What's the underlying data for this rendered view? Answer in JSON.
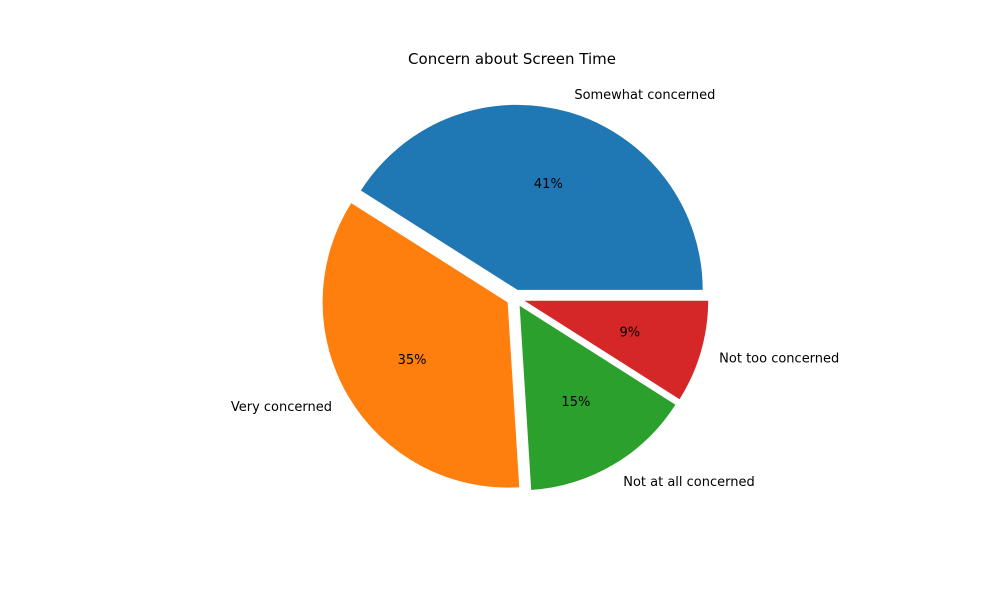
{
  "chart_data": {
    "type": "pie",
    "title": "Concern about Screen Time",
    "start_angle_deg": 0,
    "direction": "counterclockwise",
    "explode": true,
    "slices": [
      {
        "label": "Somewhat concerned",
        "value": 41,
        "pct_label": "41%",
        "color": "#1f77b4"
      },
      {
        "label": "Very concerned",
        "value": 35,
        "pct_label": "35%",
        "color": "#ff7f0e"
      },
      {
        "label": "Not at all concerned",
        "value": 15,
        "pct_label": "15%",
        "color": "#2ca02c"
      },
      {
        "label": "Not too concerned",
        "value": 9,
        "pct_label": "9%",
        "color": "#d62728"
      }
    ]
  }
}
